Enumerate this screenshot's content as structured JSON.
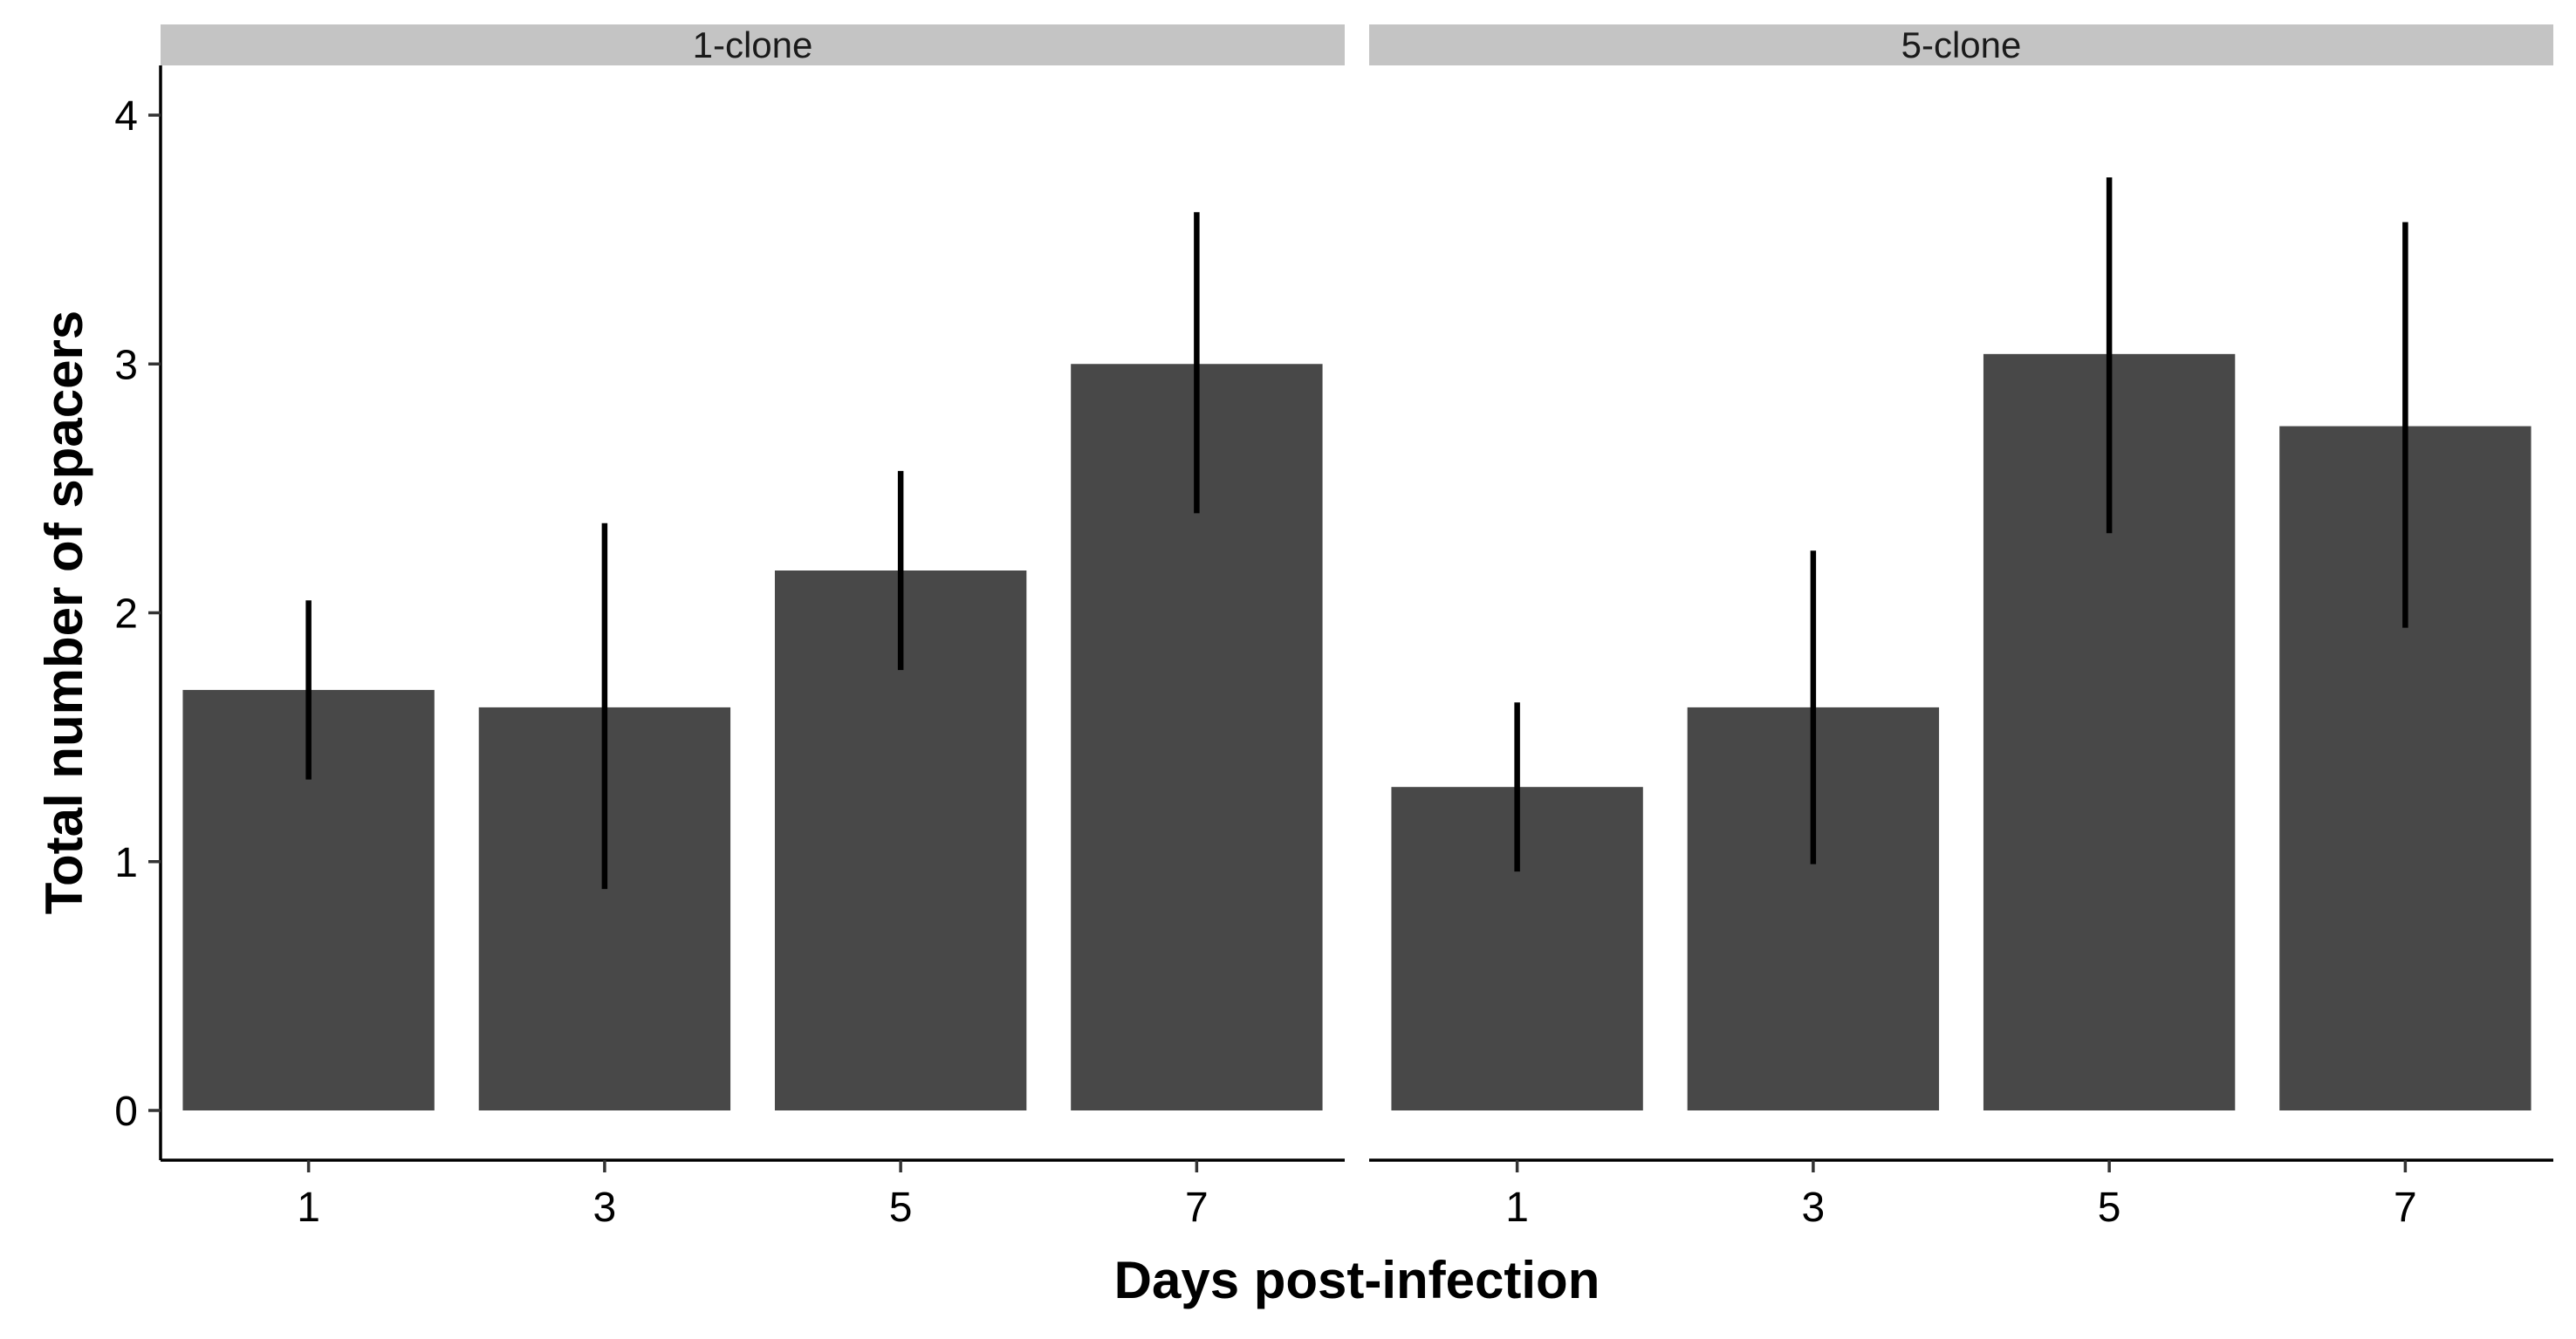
{
  "chart_data": {
    "type": "bar",
    "xlabel": "Days post-infection",
    "ylabel": "Total number of spacers",
    "ylim": [
      0,
      4
    ],
    "yticks": [
      "0",
      "1",
      "2",
      "3",
      "4"
    ],
    "categories": [
      "1",
      "3",
      "5",
      "7"
    ],
    "grid": false,
    "bar_color": "#484848",
    "strip_color": "#c4c4c4",
    "facets": [
      {
        "label": "1-clone",
        "values": [
          1.69,
          1.62,
          2.17,
          3.0
        ],
        "error_low": [
          1.33,
          0.89,
          1.77,
          2.4
        ],
        "error_high": [
          2.05,
          2.36,
          2.57,
          3.61
        ]
      },
      {
        "label": "5-clone",
        "values": [
          1.3,
          1.62,
          3.04,
          2.75
        ],
        "error_low": [
          0.96,
          0.99,
          2.32,
          1.94
        ],
        "error_high": [
          1.64,
          2.25,
          3.75,
          3.57
        ]
      }
    ]
  }
}
